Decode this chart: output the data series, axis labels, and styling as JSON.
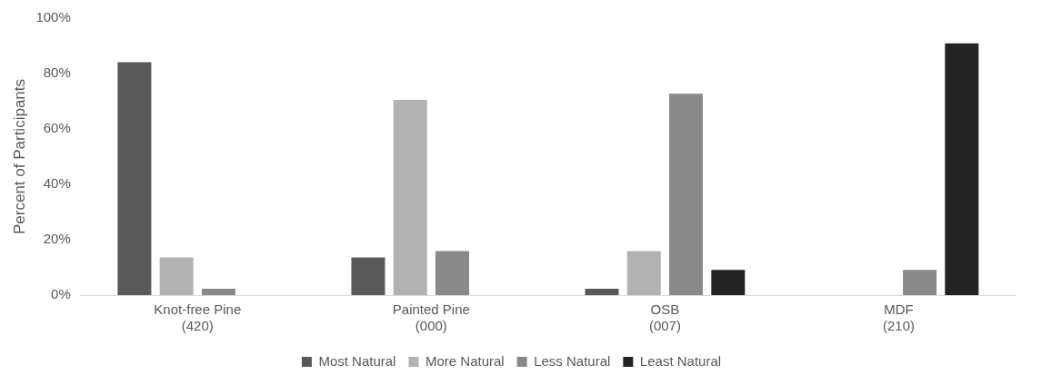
{
  "chart_data": {
    "type": "bar",
    "ylabel": "Percent of Participants",
    "categories": [
      "Knot-free Pine\n(420)",
      "Painted Pine\n(000)",
      "OSB\n(007)",
      "MDF\n(210)"
    ],
    "series": [
      {
        "name": "Most Natural",
        "color": "#595959",
        "values": [
          84.1,
          13.6,
          2.3,
          0
        ]
      },
      {
        "name": "More Natural",
        "color": "#b2b2b2",
        "values": [
          13.6,
          70.5,
          15.9,
          0
        ]
      },
      {
        "name": "Less Natural",
        "color": "#898989",
        "values": [
          2.3,
          15.9,
          72.7,
          9.1
        ]
      },
      {
        "name": "Least Natural",
        "color": "#232323",
        "values": [
          0,
          0,
          9.1,
          90.9
        ]
      }
    ],
    "ylim": [
      0,
      100
    ],
    "yticks": [
      {
        "value": 0,
        "label": "0%"
      },
      {
        "value": 20,
        "label": "20%"
      },
      {
        "value": 40,
        "label": "40%"
      },
      {
        "value": 60,
        "label": "60%"
      },
      {
        "value": 80,
        "label": "80%"
      },
      {
        "value": 100,
        "label": "100%"
      }
    ],
    "grid": false,
    "legend": "bottom"
  }
}
